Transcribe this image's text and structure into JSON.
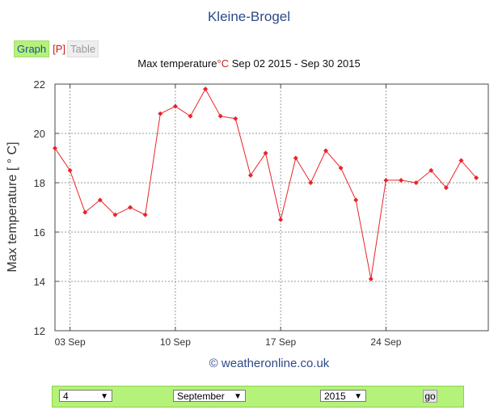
{
  "station": "Kleine-Brogel",
  "tabs": {
    "graph": "Graph",
    "p": "[P]",
    "table": "Table"
  },
  "title": {
    "prefix": "Max temperature",
    "unit": "°C",
    "range": " Sep 02 2015 - Sep 30 2015"
  },
  "credit": "© weatheronline.co.uk",
  "colors": {
    "series": "#e8242a",
    "accent": "#b5f27a",
    "link": "#2d4a86"
  },
  "controls": {
    "day": "4",
    "month": "September",
    "year": "2015",
    "go": "go"
  },
  "chart_data": {
    "type": "line",
    "ylabel": "Max temperature [ ° C]",
    "ylim": [
      12,
      22
    ],
    "yticks": [
      12,
      14,
      16,
      18,
      20,
      22
    ],
    "xlim": [
      2,
      30.8
    ],
    "xtick_positions": [
      3,
      10,
      17,
      24
    ],
    "xtick_labels": [
      "03 Sep",
      "10 Sep",
      "17 Sep",
      "24 Sep"
    ],
    "grid": true,
    "x": [
      2,
      3,
      4,
      5,
      6,
      7,
      8,
      9,
      10,
      11,
      12,
      13,
      14,
      15,
      16,
      17,
      18,
      19,
      20,
      21,
      22,
      23,
      24,
      25,
      26,
      27,
      28,
      29,
      30
    ],
    "y": [
      19.4,
      18.5,
      16.8,
      17.3,
      16.7,
      17.0,
      16.7,
      20.8,
      21.1,
      20.7,
      21.8,
      20.7,
      20.6,
      18.3,
      19.2,
      16.5,
      19.0,
      18.0,
      19.3,
      18.6,
      17.3,
      14.1,
      18.1,
      18.1,
      18.0,
      18.5,
      17.8,
      18.9,
      18.2
    ]
  }
}
